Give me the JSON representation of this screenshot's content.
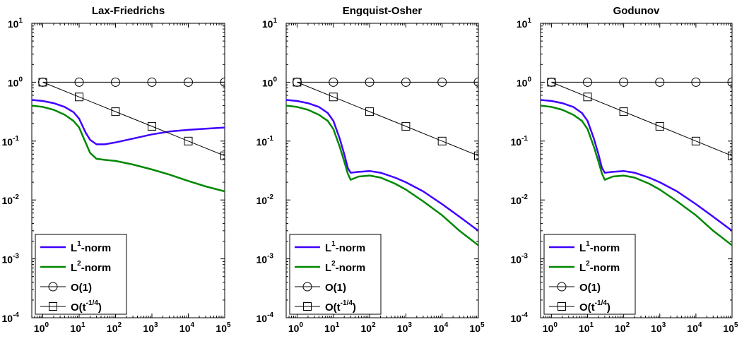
{
  "chart_data": [
    {
      "type": "line",
      "title": "Lax-Friedrichs",
      "xscale": "log",
      "yscale": "log",
      "xlim": [
        0.5,
        100000
      ],
      "ylim": [
        0.0001,
        10
      ],
      "xticks": [
        {
          "base": "10",
          "exp": "0"
        },
        {
          "base": "10",
          "exp": "1"
        },
        {
          "base": "10",
          "exp": "2"
        },
        {
          "base": "10",
          "exp": "3"
        },
        {
          "base": "10",
          "exp": "4"
        },
        {
          "base": "10",
          "exp": "5"
        }
      ],
      "yticks": [
        {
          "base": "10",
          "exp": "-4"
        },
        {
          "base": "10",
          "exp": "-3"
        },
        {
          "base": "10",
          "exp": "-2"
        },
        {
          "base": "10",
          "exp": "-1"
        },
        {
          "base": "10",
          "exp": "0"
        },
        {
          "base": "10",
          "exp": "1"
        }
      ],
      "legend_position": "bottom-left",
      "series": [
        {
          "name": "L1-norm",
          "label_main": "L",
          "label_sup": "1",
          "label_end": "-norm",
          "color": "#3f00ff",
          "x": [
            0.5,
            1,
            2,
            4,
            7,
            10,
            15,
            20,
            30,
            50,
            100,
            300,
            1000,
            3000,
            10000,
            30000,
            100000
          ],
          "y": [
            0.5,
            0.48,
            0.44,
            0.38,
            0.31,
            0.24,
            0.14,
            0.105,
            0.088,
            0.088,
            0.095,
            0.11,
            0.13,
            0.145,
            0.155,
            0.162,
            0.17
          ]
        },
        {
          "name": "L2-norm",
          "label_main": "L",
          "label_sup": "2",
          "label_end": "-norm",
          "color": "#008800",
          "x": [
            0.5,
            1,
            2,
            4,
            7,
            10,
            15,
            20,
            30,
            50,
            100,
            300,
            1000,
            3000,
            10000,
            30000,
            100000
          ],
          "y": [
            0.4,
            0.38,
            0.34,
            0.28,
            0.22,
            0.17,
            0.095,
            0.063,
            0.05,
            0.048,
            0.046,
            0.04,
            0.033,
            0.027,
            0.021,
            0.017,
            0.014
          ]
        },
        {
          "name": "O(1)",
          "label_main": "O(1)",
          "label_sup": "",
          "label_end": "",
          "color": "#000000",
          "marker": "circle",
          "x": [
            1,
            10,
            100,
            1000,
            10000,
            100000
          ],
          "y": [
            1,
            1,
            1,
            1,
            1,
            1
          ]
        },
        {
          "name": "O(t^-1/4)",
          "label_main": "O(t",
          "label_sup": "-1/4",
          "label_end": ")",
          "color": "#000000",
          "marker": "square",
          "x": [
            1,
            10,
            100,
            1000,
            10000,
            100000
          ],
          "y": [
            1,
            0.562,
            0.316,
            0.178,
            0.1,
            0.0562
          ]
        }
      ]
    },
    {
      "type": "line",
      "title": "Engquist-Osher",
      "xscale": "log",
      "yscale": "log",
      "xlim": [
        0.5,
        100000
      ],
      "ylim": [
        0.0001,
        10
      ],
      "xticks": [
        {
          "base": "10",
          "exp": "0"
        },
        {
          "base": "10",
          "exp": "1"
        },
        {
          "base": "10",
          "exp": "2"
        },
        {
          "base": "10",
          "exp": "3"
        },
        {
          "base": "10",
          "exp": "4"
        },
        {
          "base": "10",
          "exp": "5"
        }
      ],
      "yticks": [
        {
          "base": "10",
          "exp": "-4"
        },
        {
          "base": "10",
          "exp": "-3"
        },
        {
          "base": "10",
          "exp": "-2"
        },
        {
          "base": "10",
          "exp": "-1"
        },
        {
          "base": "10",
          "exp": "0"
        },
        {
          "base": "10",
          "exp": "1"
        }
      ],
      "legend_position": "bottom-left",
      "series": [
        {
          "name": "L1-norm",
          "label_main": "L",
          "label_sup": "1",
          "label_end": "-norm",
          "color": "#3f00ff",
          "x": [
            0.5,
            1,
            2,
            4,
            7,
            10,
            15,
            20,
            25,
            30,
            50,
            100,
            200,
            500,
            1000,
            3000,
            10000,
            30000,
            100000
          ],
          "y": [
            0.5,
            0.48,
            0.44,
            0.38,
            0.3,
            0.22,
            0.11,
            0.06,
            0.035,
            0.029,
            0.03,
            0.031,
            0.029,
            0.024,
            0.02,
            0.014,
            0.0085,
            0.0052,
            0.003
          ]
        },
        {
          "name": "L2-norm",
          "label_main": "L",
          "label_sup": "2",
          "label_end": "-norm",
          "color": "#008800",
          "x": [
            0.5,
            1,
            2,
            4,
            7,
            10,
            15,
            20,
            25,
            30,
            50,
            100,
            200,
            500,
            1000,
            3000,
            10000,
            30000,
            100000
          ],
          "y": [
            0.4,
            0.38,
            0.34,
            0.28,
            0.22,
            0.16,
            0.08,
            0.045,
            0.028,
            0.022,
            0.025,
            0.026,
            0.024,
            0.019,
            0.015,
            0.0095,
            0.0055,
            0.003,
            0.0017
          ]
        },
        {
          "name": "O(1)",
          "label_main": "O(1)",
          "label_sup": "",
          "label_end": "",
          "color": "#000000",
          "marker": "circle",
          "x": [
            1,
            10,
            100,
            1000,
            10000,
            100000
          ],
          "y": [
            1,
            1,
            1,
            1,
            1,
            1
          ]
        },
        {
          "name": "O(t^-1/4)",
          "label_main": "O(t",
          "label_sup": "-1/4",
          "label_end": ")",
          "color": "#000000",
          "marker": "square",
          "x": [
            1,
            10,
            100,
            1000,
            10000,
            100000
          ],
          "y": [
            1,
            0.562,
            0.316,
            0.178,
            0.1,
            0.0562
          ]
        }
      ]
    },
    {
      "type": "line",
      "title": "Godunov",
      "xscale": "log",
      "yscale": "log",
      "xlim": [
        0.5,
        100000
      ],
      "ylim": [
        0.0001,
        10
      ],
      "xticks": [
        {
          "base": "10",
          "exp": "0"
        },
        {
          "base": "10",
          "exp": "1"
        },
        {
          "base": "10",
          "exp": "2"
        },
        {
          "base": "10",
          "exp": "3"
        },
        {
          "base": "10",
          "exp": "4"
        },
        {
          "base": "10",
          "exp": "5"
        }
      ],
      "yticks": [
        {
          "base": "10",
          "exp": "-4"
        },
        {
          "base": "10",
          "exp": "-3"
        },
        {
          "base": "10",
          "exp": "-2"
        },
        {
          "base": "10",
          "exp": "-1"
        },
        {
          "base": "10",
          "exp": "0"
        },
        {
          "base": "10",
          "exp": "1"
        }
      ],
      "legend_position": "bottom-left",
      "series": [
        {
          "name": "L1-norm",
          "label_main": "L",
          "label_sup": "1",
          "label_end": "-norm",
          "color": "#3f00ff",
          "x": [
            0.5,
            1,
            2,
            4,
            7,
            10,
            15,
            20,
            25,
            30,
            50,
            100,
            200,
            500,
            1000,
            3000,
            10000,
            30000,
            100000
          ],
          "y": [
            0.5,
            0.48,
            0.44,
            0.38,
            0.3,
            0.22,
            0.11,
            0.06,
            0.035,
            0.029,
            0.03,
            0.031,
            0.029,
            0.024,
            0.02,
            0.014,
            0.0085,
            0.0052,
            0.003
          ]
        },
        {
          "name": "L2-norm",
          "label_main": "L",
          "label_sup": "2",
          "label_end": "-norm",
          "color": "#008800",
          "x": [
            0.5,
            1,
            2,
            4,
            7,
            10,
            15,
            20,
            25,
            30,
            50,
            100,
            200,
            500,
            1000,
            3000,
            10000,
            30000,
            100000
          ],
          "y": [
            0.4,
            0.38,
            0.34,
            0.28,
            0.22,
            0.16,
            0.08,
            0.045,
            0.028,
            0.022,
            0.025,
            0.026,
            0.024,
            0.019,
            0.015,
            0.0095,
            0.0055,
            0.003,
            0.0017
          ]
        },
        {
          "name": "O(1)",
          "label_main": "O(1)",
          "label_sup": "",
          "label_end": "",
          "color": "#000000",
          "marker": "circle",
          "x": [
            1,
            10,
            100,
            1000,
            10000,
            100000
          ],
          "y": [
            1,
            1,
            1,
            1,
            1,
            1
          ]
        },
        {
          "name": "O(t^-1/4)",
          "label_main": "O(t",
          "label_sup": "-1/4",
          "label_end": ")",
          "color": "#000000",
          "marker": "square",
          "x": [
            1,
            10,
            100,
            1000,
            10000,
            100000
          ],
          "y": [
            1,
            0.562,
            0.316,
            0.178,
            0.1,
            0.0562
          ]
        }
      ]
    }
  ]
}
